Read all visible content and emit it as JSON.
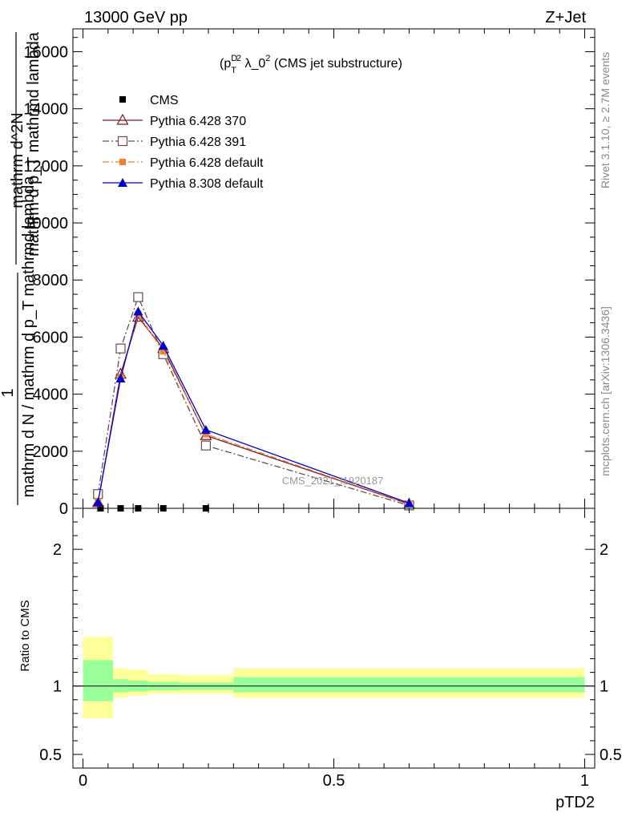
{
  "header": {
    "left": "13000 GeV pp",
    "right": "Z+Jet"
  },
  "side_labels": {
    "rivet": "Rivet 3.1.10, ≥ 2.7M events",
    "mcplots": "mcplots.cern.ch [arXiv:1306.3436]"
  },
  "watermark": "CMS_2021_I1920187",
  "colors": {
    "cms": "#000000",
    "py6_370": "#7b1a1a",
    "py6_391": "#6b4a50",
    "py6_default": "#f07f2f",
    "py8_default": "#0000cc",
    "band_outer": "#ffff99",
    "band_inner": "#99ff99"
  },
  "chart_data": [
    {
      "type": "line",
      "title_parts": {
        "p": "(p",
        "sup1": "D",
        "sub": "T",
        "sup2": "2",
        "rest": " λ_0",
        "sup3": "2",
        "tail": " (CMS jet substructure)"
      },
      "ylabel_main": "mathrm d N / mathrm d p_T mathrmd lambda",
      "ylabel_top": "mathrm d^2N",
      "ylabel_one": "1",
      "ylabel_under": "mathrm d p_T mathrmd lambda",
      "ylim": [
        0,
        16800
      ],
      "yticks": [
        "0",
        "2000",
        "4000",
        "6000",
        "8000",
        "10000",
        "12000",
        "14000",
        "16000"
      ],
      "xlim": [
        -0.02,
        1.02
      ],
      "legend_position": "top-left",
      "series": [
        {
          "name": "CMS",
          "style": "marker-square",
          "x": [
            0.035,
            0.075,
            0.11,
            0.16,
            0.245
          ],
          "y": [
            0,
            0,
            0,
            0,
            0
          ]
        },
        {
          "name": "Pythia 6.428 370",
          "style": "triangle-open-solid",
          "x": [
            0.03,
            0.075,
            0.11,
            0.16,
            0.245,
            0.65
          ],
          "y": [
            200,
            4700,
            6700,
            5600,
            2550,
            150
          ]
        },
        {
          "name": "Pythia 6.428 391",
          "style": "square-open-dashdot",
          "x": [
            0.03,
            0.075,
            0.11,
            0.16,
            0.245,
            0.65
          ],
          "y": [
            500,
            5600,
            7400,
            5400,
            2200,
            100
          ]
        },
        {
          "name": "Pythia 6.428 default",
          "style": "square-filled-dashdot",
          "x": [
            0.03,
            0.075,
            0.11,
            0.16,
            0.245,
            0.65
          ],
          "y": [
            250,
            4600,
            6800,
            5500,
            2600,
            160
          ]
        },
        {
          "name": "Pythia 8.308 default",
          "style": "triangle-filled-solid",
          "x": [
            0.03,
            0.075,
            0.11,
            0.16,
            0.245,
            0.65
          ],
          "y": [
            220,
            4550,
            6900,
            5700,
            2750,
            180
          ]
        }
      ]
    },
    {
      "type": "area",
      "ylabel": "Ratio to CMS",
      "xlabel": "pTD2",
      "ylim": [
        0.4,
        2.3
      ],
      "yticks": [
        "0.5",
        "1",
        "2"
      ],
      "xticks": [
        "0",
        "0.5",
        "1"
      ],
      "bins": [
        {
          "x0": 0.0,
          "x1": 0.06,
          "outer": [
            0.765,
            1.36
          ],
          "inner": [
            0.89,
            1.19
          ]
        },
        {
          "x0": 0.06,
          "x1": 0.09,
          "outer": [
            0.915,
            1.13
          ],
          "inner": [
            0.955,
            1.05
          ]
        },
        {
          "x0": 0.09,
          "x1": 0.13,
          "outer": [
            0.93,
            1.12
          ],
          "inner": [
            0.96,
            1.04
          ]
        },
        {
          "x0": 0.13,
          "x1": 0.19,
          "outer": [
            0.945,
            1.085
          ],
          "inner": [
            0.97,
            1.03
          ]
        },
        {
          "x0": 0.19,
          "x1": 0.3,
          "outer": [
            0.945,
            1.08
          ],
          "inner": [
            0.972,
            1.025
          ]
        },
        {
          "x0": 0.3,
          "x1": 1.0,
          "outer": [
            0.915,
            1.13
          ],
          "inner": [
            0.955,
            1.065
          ]
        }
      ]
    }
  ]
}
